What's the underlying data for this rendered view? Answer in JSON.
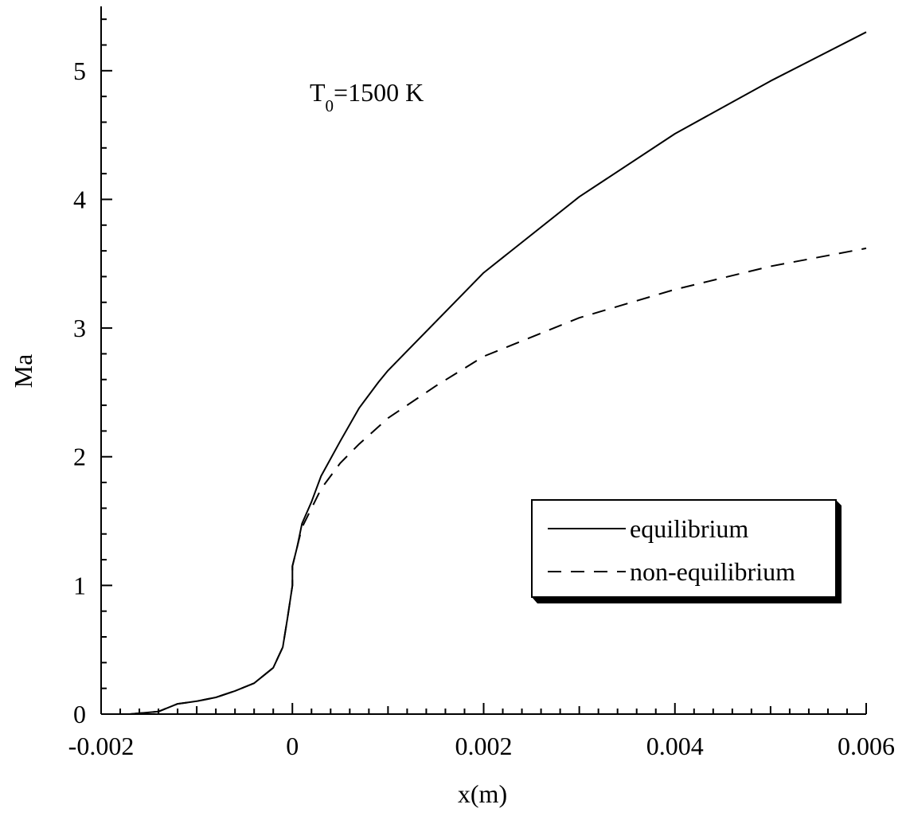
{
  "chart_data": {
    "type": "line",
    "xlabel": "x(m)",
    "ylabel": "Ma",
    "xlim": [
      -0.002,
      0.006
    ],
    "ylim": [
      0,
      5.5
    ],
    "x_ticks": [
      "-0.002",
      "0",
      "0.002",
      "0.004",
      "0.006"
    ],
    "y_ticks": [
      "0",
      "1",
      "2",
      "3",
      "4",
      "5"
    ],
    "annotation": {
      "main": "T",
      "sub": "0",
      "rest": "=1500 K"
    },
    "legend_position": "right",
    "series": [
      {
        "name": "equilibrium",
        "style": "solid",
        "points": [
          [
            -0.0017,
            0.0
          ],
          [
            -0.00155,
            0.01
          ],
          [
            -0.0014,
            0.02
          ],
          [
            -0.0013,
            0.05
          ],
          [
            -0.0012,
            0.08
          ],
          [
            -0.0011,
            0.09
          ],
          [
            -0.001,
            0.1
          ],
          [
            -0.0008,
            0.13
          ],
          [
            -0.0006,
            0.18
          ],
          [
            -0.0004,
            0.24
          ],
          [
            -0.0002,
            0.36
          ],
          [
            -0.0001,
            0.52
          ],
          [
            -5e-05,
            0.75
          ],
          [
            0.0,
            1.0
          ],
          [
            0.0,
            1.15
          ],
          [
            5e-05,
            1.3
          ],
          [
            0.0001,
            1.48
          ],
          [
            0.0002,
            1.65
          ],
          [
            0.0003,
            1.85
          ],
          [
            0.0005,
            2.12
          ],
          [
            0.0007,
            2.38
          ],
          [
            0.0009,
            2.58
          ],
          [
            0.001,
            2.67
          ],
          [
            0.002,
            3.43
          ],
          [
            0.003,
            4.02
          ],
          [
            0.004,
            4.51
          ],
          [
            0.005,
            4.92
          ],
          [
            0.006,
            5.3
          ]
        ]
      },
      {
        "name": "non-equilibrium",
        "style": "dashed",
        "points": [
          [
            -0.0017,
            0.0
          ],
          [
            -0.00155,
            0.01
          ],
          [
            -0.0014,
            0.02
          ],
          [
            -0.0013,
            0.05
          ],
          [
            -0.0012,
            0.08
          ],
          [
            -0.0011,
            0.09
          ],
          [
            -0.001,
            0.1
          ],
          [
            -0.0008,
            0.13
          ],
          [
            -0.0006,
            0.18
          ],
          [
            -0.0004,
            0.24
          ],
          [
            -0.0002,
            0.36
          ],
          [
            -0.0001,
            0.52
          ],
          [
            -5e-05,
            0.75
          ],
          [
            0.0,
            1.0
          ],
          [
            0.0,
            1.15
          ],
          [
            5e-05,
            1.3
          ],
          [
            0.0001,
            1.45
          ],
          [
            0.0002,
            1.6
          ],
          [
            0.0003,
            1.75
          ],
          [
            0.0005,
            1.95
          ],
          [
            0.0007,
            2.1
          ],
          [
            0.001,
            2.3
          ],
          [
            0.0015,
            2.55
          ],
          [
            0.002,
            2.78
          ],
          [
            0.003,
            3.08
          ],
          [
            0.004,
            3.3
          ],
          [
            0.005,
            3.48
          ],
          [
            0.006,
            3.62
          ]
        ]
      }
    ]
  }
}
